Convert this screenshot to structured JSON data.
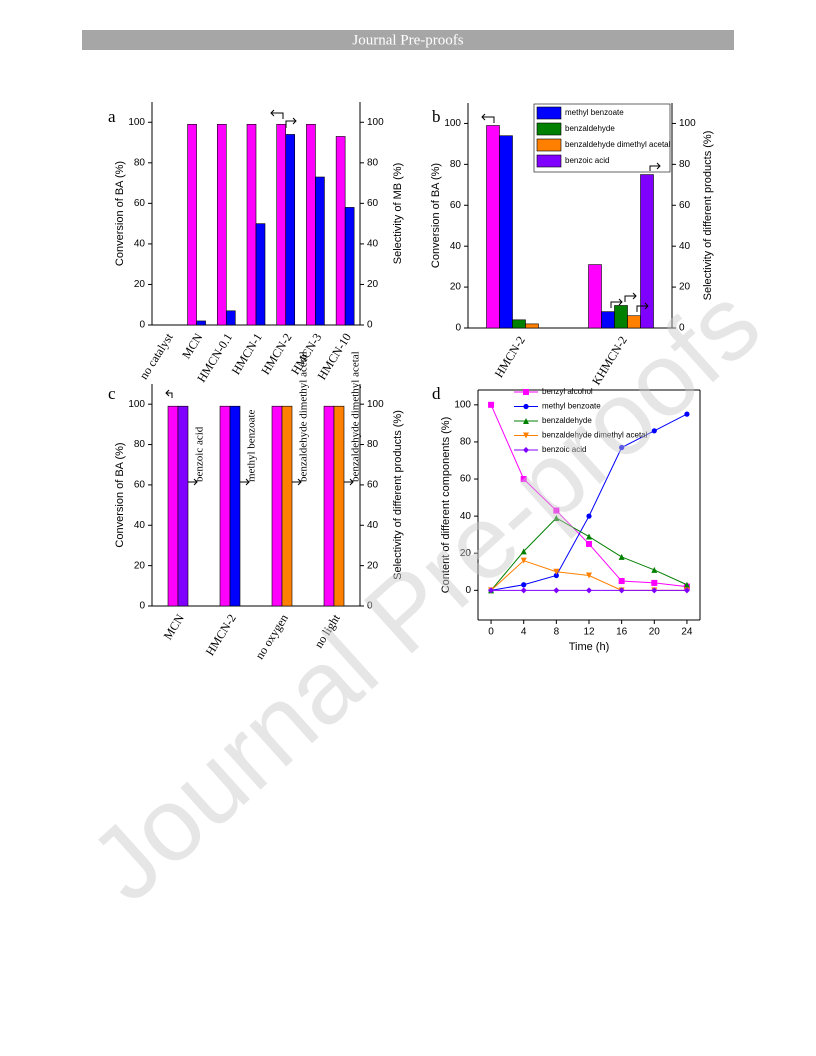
{
  "header": {
    "title": "Journal Pre-proofs"
  },
  "watermark": "Journal Pre-proofs",
  "chart_data": [
    {
      "type": "bar",
      "panel": "a",
      "categories": [
        "no catalyst",
        "MCN",
        "HMCN-0.1",
        "HMCN-1",
        "HMCN-2",
        "HMCN-3",
        "HMCN-10"
      ],
      "series": [
        {
          "color": "#ff00ff",
          "values": [
            0,
            99,
            99,
            99,
            99,
            99,
            93
          ]
        },
        {
          "color": "#0000ff",
          "axis": "y2",
          "values": [
            0,
            2,
            7,
            50,
            94,
            73,
            58
          ]
        }
      ],
      "ylabel": "Conversion of BA (%)",
      "y2label": "Selectivity of MB (%)",
      "ylim": [
        0,
        110
      ],
      "yticks": [
        0,
        20,
        40,
        60,
        80,
        100
      ],
      "y2lim": [
        0,
        110
      ],
      "y2ticks": [
        0,
        20,
        40,
        60,
        80,
        100
      ]
    },
    {
      "type": "bar",
      "panel": "b",
      "categories": [
        "HMCN-2",
        "KHMCN-2"
      ],
      "series": [
        {
          "color": "#ff00ff",
          "values": [
            99,
            31
          ]
        },
        {
          "name": "methyl benzoate",
          "color": "#0000ff",
          "axis": "y2",
          "values": [
            94,
            8
          ]
        },
        {
          "name": "benzaldehyde",
          "color": "#008000",
          "axis": "y2",
          "values": [
            4,
            11
          ]
        },
        {
          "name": "benzaldehyde dimethyl acetal",
          "color": "#ff8000",
          "axis": "y2",
          "values": [
            2,
            6
          ]
        },
        {
          "name": "benzoic acid",
          "color": "#8000ff",
          "axis": "y2",
          "values": [
            0,
            75
          ]
        }
      ],
      "ylabel": "Conversion of BA (%)",
      "y2label": "Selectivity of different products (%)",
      "ylim": [
        0,
        110
      ],
      "yticks": [
        0,
        20,
        40,
        60,
        80,
        100
      ],
      "y2lim": [
        0,
        110
      ],
      "y2ticks": [
        0,
        20,
        40,
        60,
        80,
        100
      ],
      "legend": "top-right"
    },
    {
      "type": "bar",
      "panel": "c",
      "categories": [
        "MCN",
        "HMCN-2",
        "no oxygen",
        "no light"
      ],
      "series": [
        {
          "color": "#ff00ff",
          "values": [
            99,
            99,
            99,
            99
          ]
        },
        {
          "colors": [
            "#8000ff",
            "#0000ff",
            "#ff8000",
            "#ff8000"
          ],
          "axis": "y2",
          "values": [
            99,
            99,
            99,
            99
          ]
        }
      ],
      "annotations": [
        "benzoic acid",
        "methyl benzoate",
        "benzaldehyde dimethyl acetal",
        "benzaldehyde dimethyl acetal"
      ],
      "ylabel": "Conversion of BA (%)",
      "y2label": "Selectivity of different products (%)",
      "ylim": [
        0,
        110
      ],
      "yticks": [
        0,
        20,
        40,
        60,
        80,
        100
      ],
      "y2lim": [
        0,
        110
      ],
      "y2ticks": [
        0,
        20,
        40,
        60,
        80,
        100
      ]
    },
    {
      "type": "line",
      "panel": "d",
      "x": [
        0,
        4,
        8,
        12,
        16,
        20,
        24
      ],
      "series": [
        {
          "name": "benzyl alcohol",
          "color": "#ff00ff",
          "marker": "square",
          "values": [
            100,
            60,
            43,
            25,
            5,
            4,
            2
          ]
        },
        {
          "name": "methyl benzoate",
          "color": "#0000ff",
          "marker": "circle",
          "values": [
            0,
            3,
            8,
            40,
            77,
            86,
            95
          ]
        },
        {
          "name": "benzaldehyde",
          "color": "#008000",
          "marker": "triangle",
          "values": [
            0,
            21,
            39,
            29,
            18,
            11,
            3
          ]
        },
        {
          "name": "benzaldehyde dimethyl acetal",
          "color": "#ff8000",
          "marker": "triangle-down",
          "values": [
            0,
            16,
            10,
            8,
            0,
            0,
            0
          ]
        },
        {
          "name": "benzoic acid",
          "color": "#8000ff",
          "marker": "diamond",
          "values": [
            0,
            0,
            0,
            0,
            0,
            0,
            0
          ]
        }
      ],
      "xlabel": "Time (h)",
      "ylabel": "Content of different components (%)",
      "xlim": [
        -1.6,
        25.6
      ],
      "xticks": [
        0,
        4,
        8,
        12,
        16,
        20,
        24
      ],
      "ylim": [
        -16,
        108
      ],
      "yticks": [
        0,
        20,
        40,
        60,
        80,
        100
      ],
      "legend": "top-left"
    }
  ]
}
